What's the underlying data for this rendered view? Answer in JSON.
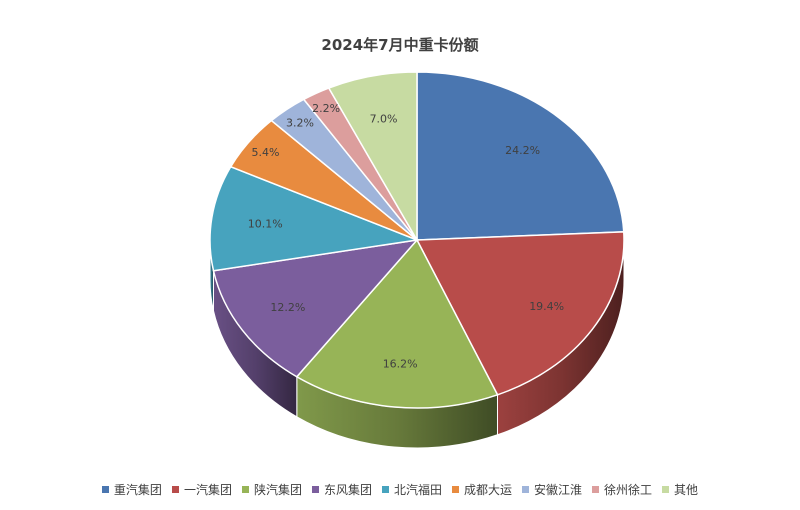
{
  "chart_data": {
    "type": "pie",
    "title": "2024年7月中重卡份额",
    "categories": [
      "重汽集团",
      "一汽集团",
      "陕汽集团",
      "东风集团",
      "北汽福田",
      "成都大运",
      "安徽江淮",
      "徐州徐工",
      "其他"
    ],
    "values": [
      24.2,
      19.4,
      16.2,
      12.2,
      10.1,
      5.4,
      3.2,
      2.2,
      7.0
    ],
    "labels": [
      "24.2%",
      "19.4%",
      "16.2%",
      "12.2%",
      "10.1%",
      "5.4%",
      "3.2%",
      "2.2%",
      "7.0%"
    ],
    "colors": [
      "#4a76b0",
      "#b84c4a",
      "#97b457",
      "#7b5e9d",
      "#47a3be",
      "#e88b3f",
      "#9fb4da",
      "#dc9e9d",
      "#c7dba2"
    ],
    "style": "3d",
    "legend_position": "bottom"
  }
}
